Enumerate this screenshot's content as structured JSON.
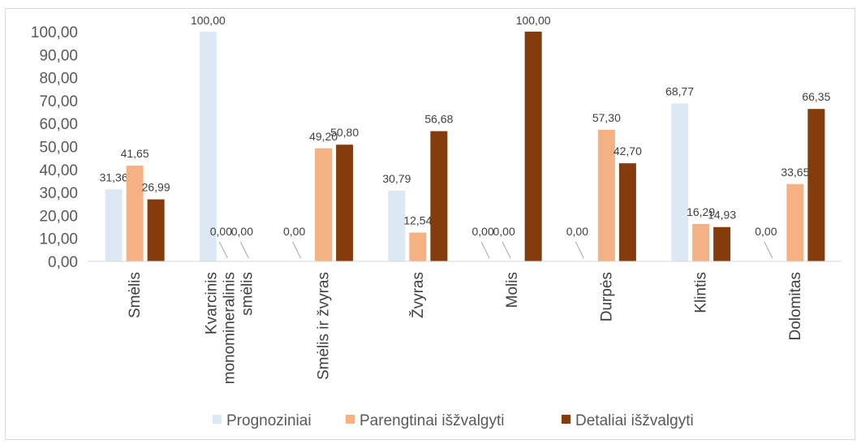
{
  "chart_data": {
    "type": "bar",
    "categories": [
      [
        "Smėlis"
      ],
      [
        "Kvarcinis",
        "monomineralinis",
        "smėlis"
      ],
      [
        "Smėlis ir žvyras"
      ],
      [
        "Žvyras"
      ],
      [
        "Molis"
      ],
      [
        "Durpės"
      ],
      [
        "Klintis"
      ],
      [
        "Dolomitas"
      ]
    ],
    "series": [
      {
        "name": "Prognoziniai",
        "color": "#dce9f5",
        "values": [
          31.36,
          100.0,
          0.0,
          30.79,
          0.0,
          0.0,
          68.77,
          0.0
        ],
        "labels": [
          "31,36",
          "100,00",
          "0,00",
          "30,79",
          "0,00",
          "0,00",
          "68,77",
          "0,00"
        ]
      },
      {
        "name": "Parengtinai išžvalgyti",
        "color": "#f4b183",
        "values": [
          41.65,
          0.0,
          49.2,
          12.54,
          0.0,
          57.3,
          16.29,
          33.65
        ],
        "labels": [
          "41,65",
          "0,00",
          "49,20",
          "12,54",
          "0,00",
          "57,30",
          "16,29",
          "33,65"
        ]
      },
      {
        "name": "Detaliai išžvalgyti",
        "color": "#843c0c",
        "values": [
          26.99,
          0.0,
          50.8,
          56.68,
          100.0,
          42.7,
          14.93,
          66.35
        ],
        "labels": [
          "26,99",
          "0,00",
          "50,80",
          "56,68",
          "100,00",
          "42,70",
          "14,93",
          "66,35"
        ]
      }
    ],
    "ylim": [
      0,
      100
    ],
    "yticks": [
      "0,00",
      "10,00",
      "20,00",
      "30,00",
      "40,00",
      "50,00",
      "60,00",
      "70,00",
      "80,00",
      "90,00",
      "100,00"
    ],
    "grid": false,
    "legend_position": "bottom"
  }
}
